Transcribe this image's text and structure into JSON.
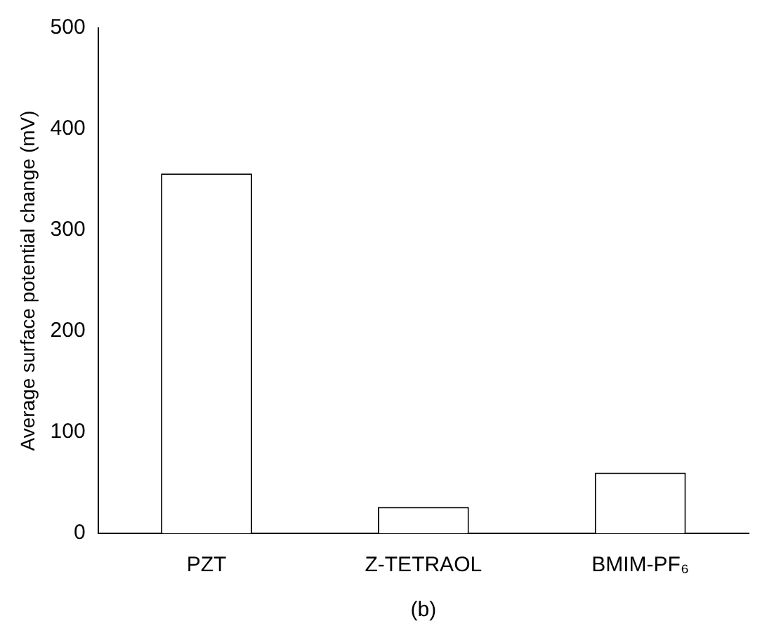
{
  "chart_data": {
    "type": "bar",
    "xlabel": "(b)",
    "ylabel": "Average surface potential change (mV)",
    "categories": [
      "PZT",
      "Z-TETRAOL",
      "BMIM-PF₆"
    ],
    "values": [
      356,
      26,
      60
    ],
    "color": "#ffffff",
    "ylim": [
      0,
      500
    ],
    "yticks": [
      0,
      100,
      200,
      300,
      400,
      500
    ],
    "grid": false,
    "legend": false
  }
}
